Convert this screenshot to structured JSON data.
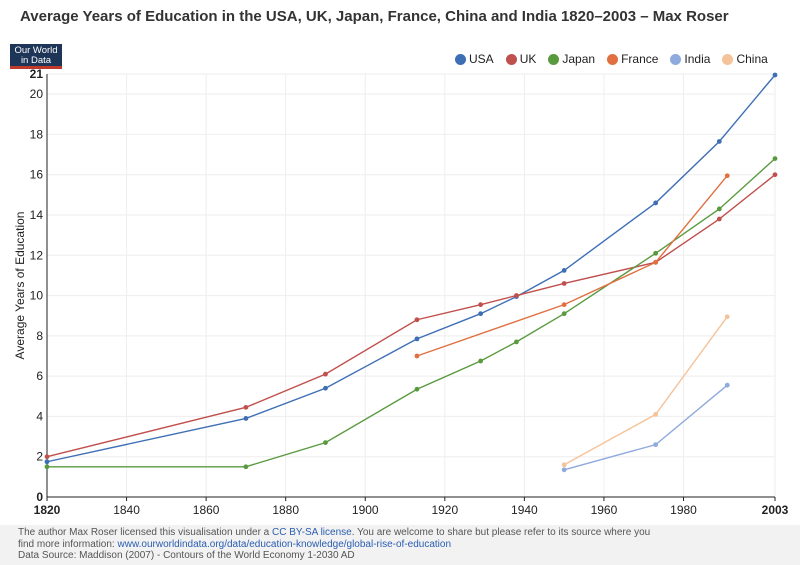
{
  "header": {
    "title": "Average Years of Education in the USA, UK, Japan, France, China and India 1820–2003 – Max Roser",
    "logo_line1": "Our World",
    "logo_line2": "in Data"
  },
  "chart_data": {
    "type": "line",
    "title": "Average Years of Education in the USA, UK, Japan, France, China and India 1820–2003 – Max Roser",
    "xlabel": "",
    "ylabel": "Average Years of Education",
    "xlim": [
      1820,
      2003
    ],
    "ylim": [
      0,
      21
    ],
    "x_ticks": [
      "1820",
      "1840",
      "1860",
      "1880",
      "1900",
      "1920",
      "1940",
      "1960",
      "1980",
      "2003"
    ],
    "x_tick_values": [
      1820,
      1840,
      1860,
      1880,
      1900,
      1920,
      1940,
      1960,
      1980,
      2003
    ],
    "y_ticks": [
      "0",
      "2",
      "4",
      "6",
      "8",
      "10",
      "12",
      "14",
      "16",
      "18",
      "20",
      "21"
    ],
    "y_tick_values": [
      0,
      2,
      4,
      6,
      8,
      10,
      12,
      14,
      16,
      18,
      20,
      21
    ],
    "grid": true,
    "legend": "top-right",
    "series": [
      {
        "name": "USA",
        "color": "#3e6fb5",
        "x": [
          1820,
          1870,
          1890,
          1913,
          1929,
          1938,
          1950,
          1973,
          1989,
          2003
        ],
        "y": [
          1.75,
          3.9,
          5.4,
          7.85,
          9.1,
          9.95,
          11.25,
          14.6,
          17.65,
          20.95
        ]
      },
      {
        "name": "UK",
        "color": "#c0504d",
        "x": [
          1820,
          1870,
          1890,
          1913,
          1929,
          1938,
          1950,
          1973,
          1989,
          2003
        ],
        "y": [
          2.0,
          4.45,
          6.1,
          8.8,
          9.55,
          10.0,
          10.6,
          11.65,
          13.8,
          16.0
        ]
      },
      {
        "name": "Japan",
        "color": "#5a9a3f",
        "x": [
          1820,
          1870,
          1890,
          1913,
          1929,
          1938,
          1950,
          1973,
          1989,
          2003
        ],
        "y": [
          1.5,
          1.5,
          2.7,
          5.35,
          6.75,
          7.7,
          9.1,
          12.1,
          14.3,
          16.8
        ]
      },
      {
        "name": "France",
        "color": "#e07040",
        "x": [
          1913,
          1950,
          1973,
          1991
        ],
        "y": [
          7.0,
          9.55,
          11.65,
          15.95
        ]
      },
      {
        "name": "India",
        "color": "#8faadc",
        "x": [
          1950,
          1973,
          1991
        ],
        "y": [
          1.35,
          2.6,
          5.55
        ]
      },
      {
        "name": "China",
        "color": "#f5c39a",
        "x": [
          1950,
          1973,
          1991
        ],
        "y": [
          1.6,
          4.1,
          8.95
        ]
      }
    ]
  },
  "footer": {
    "line1_a": "The author Max Roser licensed this visualisation under a ",
    "license_link": "CC BY-SA license",
    "line1_b": ". You are welcome to share but please refer to its source where you",
    "line2_a": "find more information: ",
    "source_link": "www.ourworldindata.org/data/education-knowledge/global-rise-of-education",
    "line3": "Data Source: Maddison (2007) - Contours of the World Economy 1-2030 AD"
  }
}
